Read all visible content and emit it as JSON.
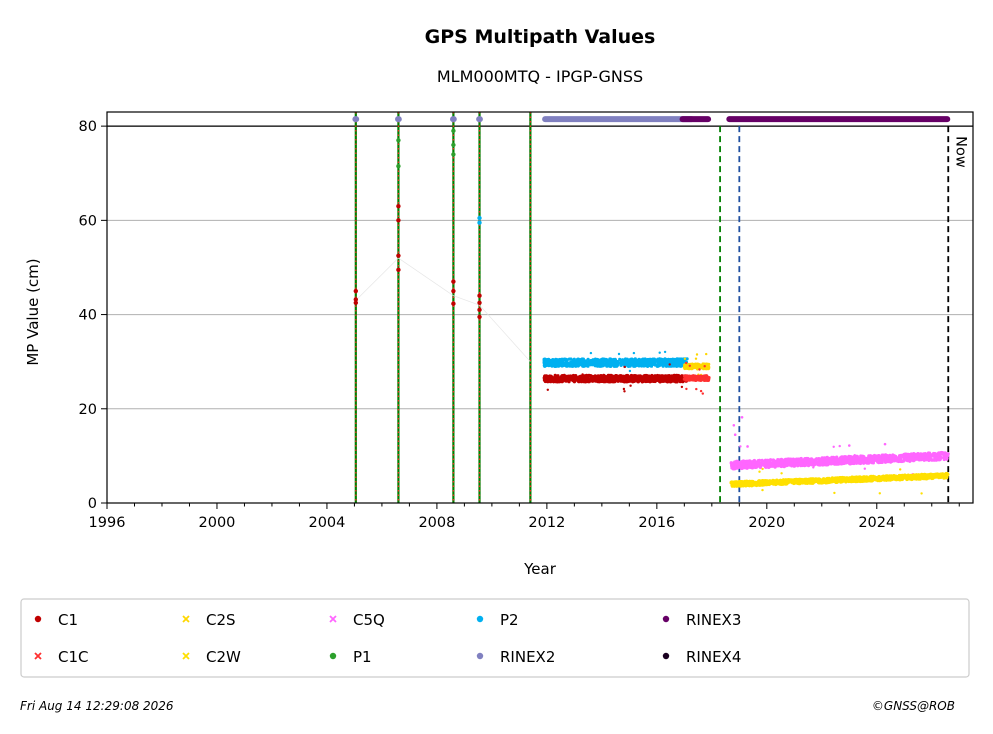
{
  "chart_data": {
    "type": "scatter",
    "title": "GPS Multipath Values",
    "subtitle": "MLM000MTQ - IPGP-GNSS",
    "xlabel": "Year",
    "ylabel": "MP Value (cm)",
    "xlim": [
      1996,
      2027.5
    ],
    "ylim": [
      0,
      83
    ],
    "x_ticks": [
      1996,
      2000,
      2004,
      2008,
      2012,
      2016,
      2020,
      2024
    ],
    "y_ticks": [
      0,
      20,
      40,
      60,
      80
    ],
    "grid": "horizontal",
    "reference_line_y": 80,
    "now_label": "Now",
    "now_x": 2026.6,
    "legend_position": "bottom",
    "legend": [
      {
        "name": "C1",
        "color": "#c00000",
        "marker": "circle"
      },
      {
        "name": "C1C",
        "color": "#ff3030",
        "marker": "x"
      },
      {
        "name": "C2S",
        "color": "#ffd700",
        "marker": "x"
      },
      {
        "name": "C2W",
        "color": "#ffe000",
        "marker": "x"
      },
      {
        "name": "C5Q",
        "color": "#ff66ff",
        "marker": "x"
      },
      {
        "name": "P1",
        "color": "#2ca02c",
        "marker": "circle"
      },
      {
        "name": "P2",
        "color": "#00b0f0",
        "marker": "circle"
      },
      {
        "name": "RINEX2",
        "color": "#8080c0",
        "marker": "circle"
      },
      {
        "name": "RINEX3",
        "color": "#660066",
        "marker": "circle"
      },
      {
        "name": "RINEX4",
        "color": "#1a0020",
        "marker": "circle"
      }
    ],
    "vertical_lines": [
      {
        "x": 2005.05,
        "style": "solid-green-red-dotted"
      },
      {
        "x": 2006.6,
        "style": "solid-green-red-dotted"
      },
      {
        "x": 2008.6,
        "style": "solid-green-red-dotted"
      },
      {
        "x": 2009.55,
        "style": "solid-green-red-dotted"
      },
      {
        "x": 2011.4,
        "style": "solid-green-red-dotted"
      },
      {
        "x": 2018.3,
        "style": "dashed",
        "color": "#008000"
      },
      {
        "x": 2019.0,
        "style": "dashed",
        "color": "#1f4fa0"
      },
      {
        "x": 2026.6,
        "style": "dashed",
        "color": "#000000"
      }
    ],
    "series": [
      {
        "name": "C1",
        "color": "#c00000",
        "points": [
          [
            2005.05,
            42.5
          ],
          [
            2005.05,
            43.2
          ],
          [
            2005.05,
            45.0
          ],
          [
            2006.6,
            49.5
          ],
          [
            2006.6,
            52.5
          ],
          [
            2006.6,
            60.0
          ],
          [
            2006.6,
            63.0
          ],
          [
            2008.6,
            42.3
          ],
          [
            2008.6,
            45.0
          ],
          [
            2008.6,
            47.0
          ],
          [
            2009.55,
            39.5
          ],
          [
            2009.55,
            41.0
          ],
          [
            2009.55,
            42.5
          ],
          [
            2009.55,
            44.0
          ]
        ]
      },
      {
        "name": "P1",
        "color": "#2ca02c",
        "points": [
          [
            2006.6,
            71.5
          ],
          [
            2006.6,
            77.0
          ],
          [
            2008.6,
            74.0
          ],
          [
            2008.6,
            76.0
          ],
          [
            2008.6,
            79.0
          ]
        ]
      },
      {
        "name": "P2",
        "color": "#00b0f0",
        "points": [
          [
            2009.55,
            59.5
          ],
          [
            2009.55,
            60.5
          ]
        ]
      }
    ],
    "bands": [
      {
        "name": "P2",
        "color": "#00b0f0",
        "x": [
          2011.9,
          2017.1
        ],
        "y_center": 29.8,
        "y_spread": 1.6
      },
      {
        "name": "C1",
        "color": "#c00000",
        "x": [
          2011.9,
          2017.1
        ],
        "y_center": 26.4,
        "y_spread": 1.4
      },
      {
        "name": "C2S",
        "color": "#ffd700",
        "x": [
          2017.0,
          2017.9
        ],
        "y_center": 29.0,
        "y_spread": 1.0
      },
      {
        "name": "C1C",
        "color": "#ff3030",
        "x": [
          2017.0,
          2017.9
        ],
        "y_center": 26.5,
        "y_spread": 1.0
      },
      {
        "name": "C5Q",
        "color": "#ff66ff",
        "x": [
          2018.7,
          2026.6
        ],
        "y_center_start": 8.0,
        "y_center_end": 10.0,
        "y_spread": 1.6
      },
      {
        "name": "C2W",
        "color": "#ffe000",
        "x": [
          2018.7,
          2026.6
        ],
        "y_center_start": 4.0,
        "y_center_end": 5.8,
        "y_spread": 1.0
      }
    ],
    "availability": [
      {
        "name": "RINEX2",
        "color": "#8080c0",
        "x_ranges": [
          [
            2005.0,
            2005.1
          ],
          [
            2006.55,
            2006.65
          ],
          [
            2008.55,
            2008.65
          ],
          [
            2009.5,
            2009.6
          ],
          [
            2011.9,
            2017.3
          ]
        ],
        "y": 81.5
      },
      {
        "name": "RINEX3",
        "color": "#660066",
        "x_ranges": [
          [
            2016.9,
            2017.9
          ],
          [
            2018.6,
            2026.6
          ]
        ],
        "y": 81.5
      }
    ]
  },
  "footer": {
    "timestamp": "Fri Aug 14 12:29:08 2026",
    "credit": "©GNSS@ROB"
  }
}
